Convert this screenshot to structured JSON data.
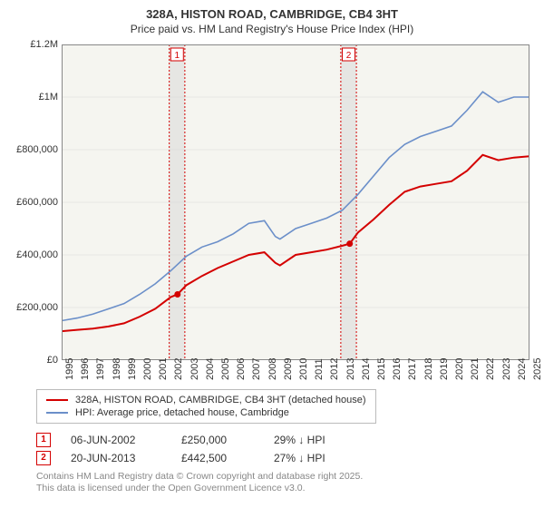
{
  "title_line1": "328A, HISTON ROAD, CAMBRIDGE, CB4 3HT",
  "title_line2": "Price paid vs. HM Land Registry's House Price Index (HPI)",
  "chart": {
    "type": "line",
    "background_color": "#f5f5f0",
    "grid_color": "#d8d8d8",
    "x": {
      "min": 1995,
      "max": 2025,
      "ticks": [
        1995,
        1996,
        1997,
        1998,
        1999,
        2000,
        2001,
        2002,
        2003,
        2004,
        2005,
        2006,
        2007,
        2008,
        2009,
        2010,
        2011,
        2012,
        2013,
        2014,
        2015,
        2016,
        2017,
        2018,
        2019,
        2020,
        2021,
        2022,
        2023,
        2024,
        2025
      ]
    },
    "y": {
      "min": 0,
      "max": 1200000,
      "ticks": [
        {
          "v": 0,
          "l": "£0"
        },
        {
          "v": 200000,
          "l": "£200,000"
        },
        {
          "v": 400000,
          "l": "£400,000"
        },
        {
          "v": 600000,
          "l": "£600,000"
        },
        {
          "v": 800000,
          "l": "£800,000"
        },
        {
          "v": 1000000,
          "l": "£1M"
        },
        {
          "v": 1200000,
          "l": "£1.2M"
        }
      ]
    },
    "series": [
      {
        "name": "328A, HISTON ROAD, CAMBRIDGE, CB4 3HT (detached house)",
        "color": "#d40000",
        "width": 2,
        "data": [
          [
            1995,
            110000
          ],
          [
            1996,
            115000
          ],
          [
            1997,
            120000
          ],
          [
            1998,
            128000
          ],
          [
            1999,
            140000
          ],
          [
            2000,
            165000
          ],
          [
            2001,
            195000
          ],
          [
            2002,
            240000
          ],
          [
            2002.43,
            250000
          ],
          [
            2003,
            285000
          ],
          [
            2004,
            320000
          ],
          [
            2005,
            350000
          ],
          [
            2006,
            375000
          ],
          [
            2007,
            400000
          ],
          [
            2008,
            410000
          ],
          [
            2008.7,
            370000
          ],
          [
            2009,
            360000
          ],
          [
            2010,
            400000
          ],
          [
            2011,
            410000
          ],
          [
            2012,
            420000
          ],
          [
            2013,
            435000
          ],
          [
            2013.47,
            442500
          ],
          [
            2014,
            485000
          ],
          [
            2015,
            535000
          ],
          [
            2016,
            590000
          ],
          [
            2017,
            640000
          ],
          [
            2018,
            660000
          ],
          [
            2019,
            670000
          ],
          [
            2020,
            680000
          ],
          [
            2021,
            720000
          ],
          [
            2022,
            780000
          ],
          [
            2023,
            760000
          ],
          [
            2024,
            770000
          ],
          [
            2025,
            775000
          ]
        ]
      },
      {
        "name": "HPI: Average price, detached house, Cambridge",
        "color": "#6b8fc9",
        "width": 1.6,
        "data": [
          [
            1995,
            150000
          ],
          [
            1996,
            160000
          ],
          [
            1997,
            175000
          ],
          [
            1998,
            195000
          ],
          [
            1999,
            215000
          ],
          [
            2000,
            250000
          ],
          [
            2001,
            290000
          ],
          [
            2002,
            340000
          ],
          [
            2003,
            395000
          ],
          [
            2004,
            430000
          ],
          [
            2005,
            450000
          ],
          [
            2006,
            480000
          ],
          [
            2007,
            520000
          ],
          [
            2008,
            530000
          ],
          [
            2008.7,
            470000
          ],
          [
            2009,
            460000
          ],
          [
            2010,
            500000
          ],
          [
            2011,
            520000
          ],
          [
            2012,
            540000
          ],
          [
            2013,
            570000
          ],
          [
            2014,
            630000
          ],
          [
            2015,
            700000
          ],
          [
            2016,
            770000
          ],
          [
            2017,
            820000
          ],
          [
            2018,
            850000
          ],
          [
            2019,
            870000
          ],
          [
            2020,
            890000
          ],
          [
            2021,
            950000
          ],
          [
            2022,
            1020000
          ],
          [
            2023,
            980000
          ],
          [
            2024,
            1000000
          ],
          [
            2025,
            1000000
          ]
        ]
      }
    ],
    "markers": [
      {
        "n": "1",
        "x": 2002.43,
        "y": 250000,
        "color": "#d40000"
      },
      {
        "n": "2",
        "x": 2013.47,
        "y": 442500,
        "color": "#d40000"
      }
    ],
    "bands": [
      {
        "from": 2001.9,
        "to": 2002.9,
        "color": "#cccccc",
        "opacity": 0.35,
        "dash": "#d40000",
        "label": "1"
      },
      {
        "from": 2012.9,
        "to": 2013.9,
        "color": "#cccccc",
        "opacity": 0.35,
        "dash": "#d40000",
        "label": "2"
      }
    ]
  },
  "legend": [
    {
      "label": "328A, HISTON ROAD, CAMBRIDGE, CB4 3HT (detached house)",
      "color": "#d40000"
    },
    {
      "label": "HPI: Average price, detached house, Cambridge",
      "color": "#6b8fc9"
    }
  ],
  "events": [
    {
      "n": "1",
      "color": "#d40000",
      "date": "06-JUN-2002",
      "price": "£250,000",
      "delta": "29% ↓ HPI"
    },
    {
      "n": "2",
      "color": "#d40000",
      "date": "20-JUN-2013",
      "price": "£442,500",
      "delta": "27% ↓ HPI"
    }
  ],
  "attribution": [
    "Contains HM Land Registry data © Crown copyright and database right 2025.",
    "This data is licensed under the Open Government Licence v3.0."
  ]
}
